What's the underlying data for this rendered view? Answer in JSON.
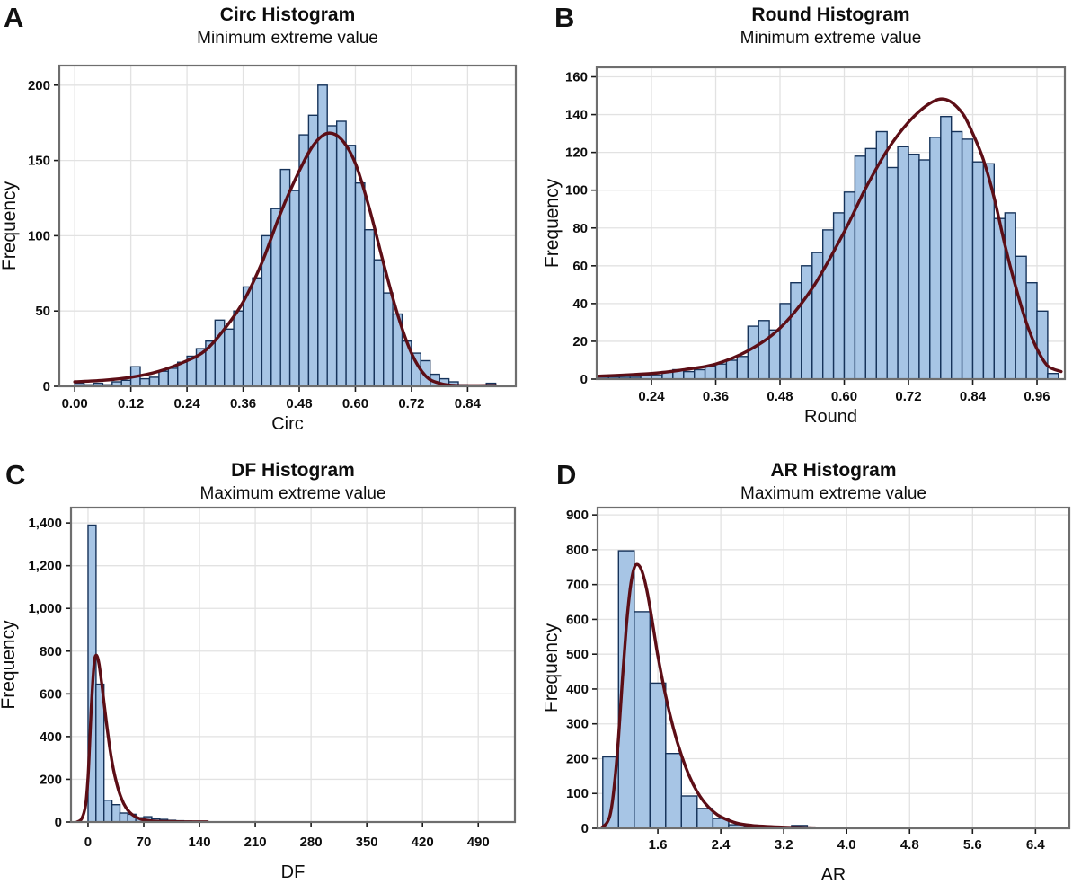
{
  "figure": {
    "description": "Four histogram panels with fitted extreme value distribution curves",
    "panel_letters": [
      "A",
      "B",
      "C",
      "D"
    ]
  },
  "style": {
    "bar_fill": "#a7c5e5",
    "bar_edge": "#16335a",
    "curve_color": "#5d0e16",
    "grid_color": "#e2e2e2",
    "frame_color": "#6e6e6e",
    "tick_color": "#1a1a1a",
    "text_color": "#0d0d0d",
    "background": "#ffffff"
  },
  "chart_data": [
    {
      "panel": "A",
      "type": "bar",
      "subtype": "histogram-with-fit-curve",
      "title": "Circ Histogram",
      "subtitle": "Minimum extreme value",
      "xlabel": "Circ",
      "ylabel": "Frequency",
      "bin_start": 0.0,
      "bin_width": 0.02,
      "frequencies": [
        2,
        1,
        2,
        1,
        3,
        4,
        13,
        5,
        6,
        10,
        12,
        16,
        20,
        25,
        30,
        44,
        38,
        50,
        66,
        72,
        100,
        118,
        144,
        130,
        167,
        180,
        200,
        173,
        176,
        160,
        135,
        104,
        84,
        62,
        48,
        30,
        22,
        17,
        8,
        5,
        3,
        1,
        0,
        0,
        2
      ],
      "fit_curve": {
        "family": "minimum extreme value",
        "points": [
          [
            0.0,
            3
          ],
          [
            0.06,
            4
          ],
          [
            0.12,
            6
          ],
          [
            0.18,
            10
          ],
          [
            0.24,
            17
          ],
          [
            0.28,
            24
          ],
          [
            0.32,
            38
          ],
          [
            0.36,
            56
          ],
          [
            0.4,
            82
          ],
          [
            0.44,
            115
          ],
          [
            0.48,
            143
          ],
          [
            0.51,
            160
          ],
          [
            0.54,
            168
          ],
          [
            0.57,
            164
          ],
          [
            0.6,
            148
          ],
          [
            0.63,
            118
          ],
          [
            0.66,
            82
          ],
          [
            0.69,
            48
          ],
          [
            0.72,
            22
          ],
          [
            0.75,
            7
          ],
          [
            0.78,
            2
          ],
          [
            0.82,
            0.5
          ],
          [
            0.9,
            0.5
          ]
        ]
      },
      "xlim": [
        -0.033,
        0.943
      ],
      "ylim": [
        0,
        213
      ],
      "xticks": [
        0.0,
        0.12,
        0.24,
        0.36,
        0.48,
        0.6,
        0.72,
        0.84
      ],
      "xtick_labels": [
        "0.00",
        "0.12",
        "0.24",
        "0.36",
        "0.48",
        "0.60",
        "0.72",
        "0.84"
      ],
      "yticks": [
        0,
        50,
        100,
        150,
        200
      ],
      "ytick_labels": [
        "0",
        "50",
        "100",
        "150",
        "200"
      ],
      "grid": true
    },
    {
      "panel": "B",
      "type": "bar",
      "subtype": "histogram-with-fit-curve",
      "title": "Round Histogram",
      "subtitle": "Minimum extreme value",
      "xlabel": "Round",
      "ylabel": "Frequency",
      "bin_start": 0.14,
      "bin_width": 0.02,
      "frequencies": [
        1,
        1,
        1,
        1,
        2,
        2,
        4,
        5,
        4,
        5,
        7,
        8,
        10,
        12,
        28,
        31,
        26,
        40,
        51,
        60,
        67,
        79,
        88,
        99,
        118,
        122,
        131,
        112,
        123,
        119,
        116,
        128,
        139,
        131,
        127,
        115,
        114,
        85,
        88,
        65,
        51,
        36,
        3
      ],
      "fit_curve": {
        "family": "minimum extreme value",
        "points": [
          [
            0.14,
            1.5
          ],
          [
            0.24,
            3
          ],
          [
            0.3,
            5
          ],
          [
            0.36,
            8
          ],
          [
            0.42,
            15
          ],
          [
            0.48,
            27
          ],
          [
            0.54,
            48
          ],
          [
            0.6,
            78
          ],
          [
            0.64,
            101
          ],
          [
            0.68,
            121
          ],
          [
            0.72,
            136
          ],
          [
            0.76,
            146
          ],
          [
            0.79,
            148
          ],
          [
            0.82,
            141
          ],
          [
            0.84,
            130
          ],
          [
            0.86,
            116
          ],
          [
            0.88,
            96
          ],
          [
            0.9,
            71
          ],
          [
            0.92,
            49
          ],
          [
            0.94,
            30
          ],
          [
            0.96,
            16
          ],
          [
            0.98,
            7
          ],
          [
            1.005,
            4
          ]
        ]
      },
      "xlim": [
        0.1376,
        1.012
      ],
      "ylim": [
        0,
        165
      ],
      "xticks": [
        0.24,
        0.36,
        0.48,
        0.6,
        0.72,
        0.84,
        0.96
      ],
      "xtick_labels": [
        "0.24",
        "0.36",
        "0.48",
        "0.60",
        "0.72",
        "0.84",
        "0.96"
      ],
      "yticks": [
        0,
        20,
        40,
        60,
        80,
        100,
        120,
        140,
        160
      ],
      "ytick_labels": [
        "0",
        "20",
        "40",
        "60",
        "80",
        "100",
        "120",
        "140",
        "160"
      ],
      "grid": true
    },
    {
      "panel": "C",
      "type": "bar",
      "subtype": "histogram-with-fit-curve",
      "title": "DF Histogram",
      "subtitle": "Maximum extreme value",
      "xlabel": "DF",
      "ylabel": "Frequency",
      "bin_start": 0,
      "bin_width": 10,
      "frequencies": [
        1390,
        645,
        102,
        81,
        42,
        36,
        20,
        25,
        15,
        12,
        8,
        6,
        4,
        3,
        3
      ],
      "fit_curve": {
        "family": "maximum extreme value",
        "points": [
          [
            -14,
            0
          ],
          [
            -8,
            15
          ],
          [
            -3,
            80
          ],
          [
            0,
            210
          ],
          [
            2,
            360
          ],
          [
            4,
            530
          ],
          [
            6,
            660
          ],
          [
            8,
            755
          ],
          [
            10,
            780
          ],
          [
            12,
            770
          ],
          [
            14,
            735
          ],
          [
            17,
            655
          ],
          [
            20,
            560
          ],
          [
            24,
            440
          ],
          [
            28,
            330
          ],
          [
            32,
            245
          ],
          [
            36,
            180
          ],
          [
            40,
            130
          ],
          [
            45,
            85
          ],
          [
            50,
            55
          ],
          [
            55,
            36
          ],
          [
            60,
            24
          ],
          [
            65,
            15
          ],
          [
            70,
            10
          ],
          [
            80,
            5
          ],
          [
            90,
            3
          ],
          [
            100,
            2
          ],
          [
            120,
            1
          ],
          [
            150,
            1
          ]
        ]
      },
      "xlim": [
        -21.4,
        536
      ],
      "ylim": [
        0,
        1472
      ],
      "xticks": [
        0,
        70,
        140,
        210,
        280,
        350,
        420,
        490
      ],
      "xtick_labels": [
        "0",
        "70",
        "140",
        "210",
        "280",
        "350",
        "420",
        "490"
      ],
      "yticks": [
        0,
        200,
        400,
        600,
        800,
        1000,
        1200,
        1400
      ],
      "ytick_labels": [
        "0",
        "200",
        "400",
        "600",
        "800",
        "1,000",
        "1,200",
        "1,400"
      ],
      "grid": true
    },
    {
      "panel": "D",
      "type": "bar",
      "subtype": "histogram-with-fit-curve",
      "title": "AR Histogram",
      "subtitle": "Maximum extreme value",
      "xlabel": "AR",
      "ylabel": "Frequency",
      "bin_start": 0.9,
      "bin_width": 0.2,
      "frequencies": [
        205,
        797,
        622,
        417,
        215,
        93,
        57,
        28,
        10,
        5,
        3,
        2,
        8
      ],
      "fit_curve": {
        "family": "maximum extreme value",
        "points": [
          [
            0.88,
            1
          ],
          [
            0.95,
            15
          ],
          [
            1.0,
            45
          ],
          [
            1.05,
            130
          ],
          [
            1.1,
            260
          ],
          [
            1.15,
            430
          ],
          [
            1.2,
            580
          ],
          [
            1.25,
            690
          ],
          [
            1.3,
            748
          ],
          [
            1.35,
            757
          ],
          [
            1.4,
            737
          ],
          [
            1.45,
            695
          ],
          [
            1.5,
            635
          ],
          [
            1.55,
            565
          ],
          [
            1.6,
            495
          ],
          [
            1.7,
            380
          ],
          [
            1.8,
            285
          ],
          [
            1.9,
            210
          ],
          [
            2.0,
            150
          ],
          [
            2.1,
            105
          ],
          [
            2.2,
            72
          ],
          [
            2.3,
            49
          ],
          [
            2.4,
            33
          ],
          [
            2.6,
            15
          ],
          [
            2.8,
            8
          ],
          [
            3.0,
            5
          ],
          [
            3.2,
            3
          ],
          [
            3.4,
            2
          ],
          [
            3.6,
            1
          ]
        ]
      },
      "xlim": [
        0.834,
        6.83
      ],
      "ylim": [
        0,
        921
      ],
      "xticks": [
        1.6,
        2.4,
        3.2,
        4.0,
        4.8,
        5.6,
        6.4
      ],
      "xtick_labels": [
        "1.6",
        "2.4",
        "3.2",
        "4.0",
        "4.8",
        "5.6",
        "6.4"
      ],
      "yticks": [
        0,
        100,
        200,
        300,
        400,
        500,
        600,
        700,
        800,
        900
      ],
      "ytick_labels": [
        "0",
        "100",
        "200",
        "300",
        "400",
        "500",
        "600",
        "700",
        "800",
        "900"
      ],
      "grid": true
    }
  ]
}
